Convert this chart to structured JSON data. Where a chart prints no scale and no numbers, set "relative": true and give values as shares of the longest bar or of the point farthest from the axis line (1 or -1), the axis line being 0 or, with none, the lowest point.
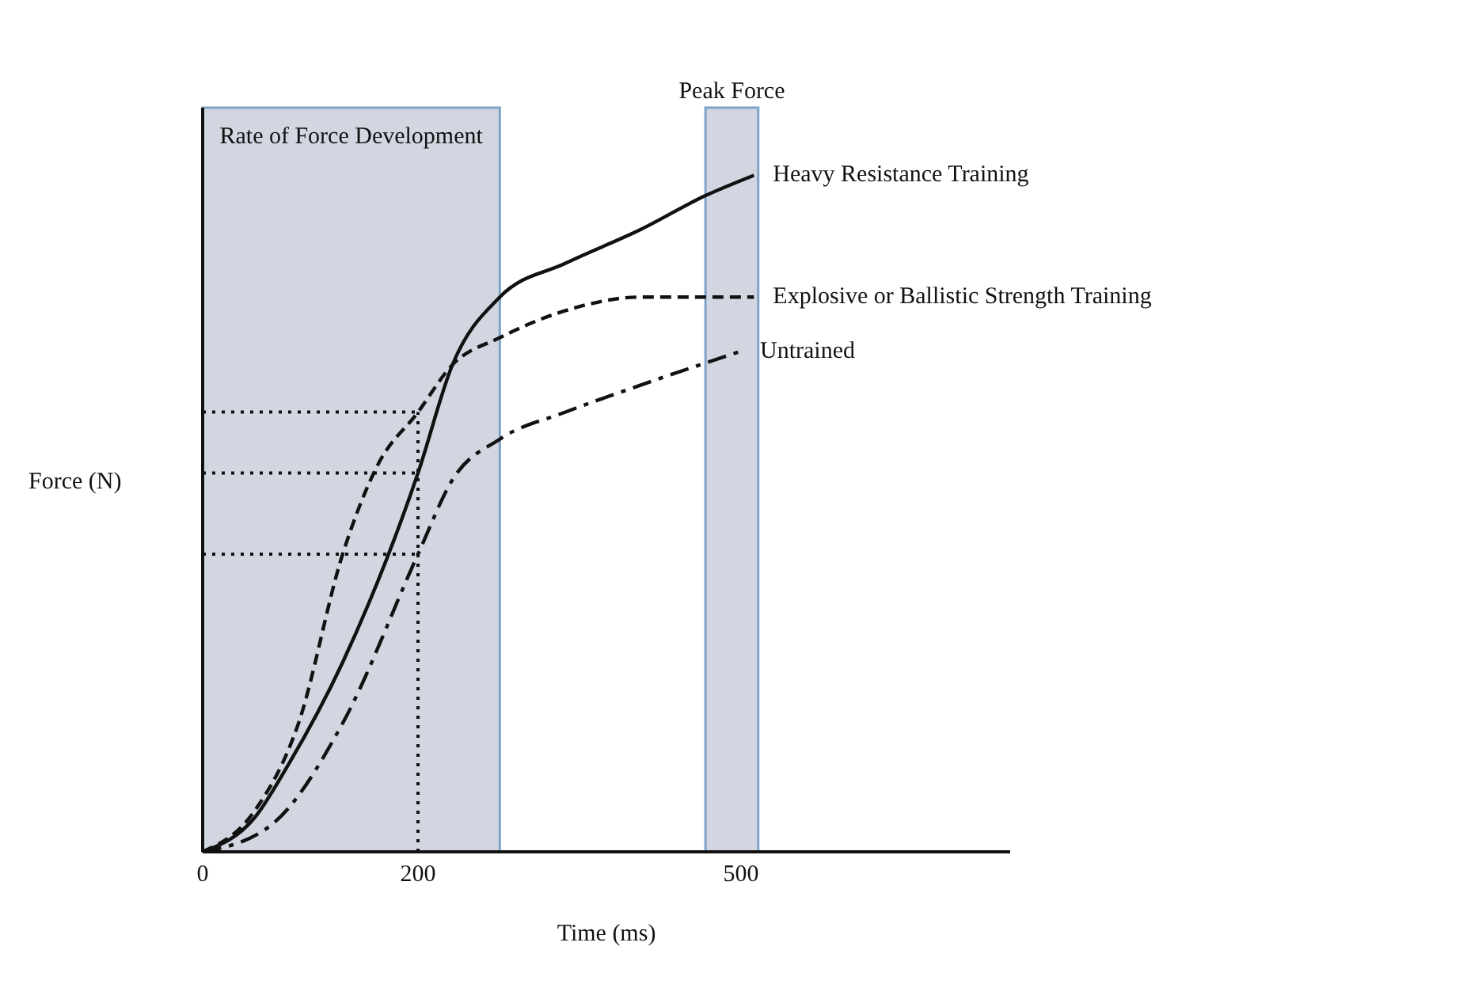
{
  "chart_data": {
    "type": "line",
    "relative": true,
    "xlabel": "Time (ms)",
    "ylabel": "Force (N)",
    "xlim": [
      0,
      750
    ],
    "xticks": [
      0,
      200,
      500
    ],
    "marker": "none",
    "series": [
      {
        "name": "Heavy Resistance Training",
        "color": "#111111",
        "line_style": "solid",
        "x": [
          0,
          48,
          80,
          130,
          200,
          232,
          276,
          337,
          407,
          467,
          512
        ],
        "values": [
          0,
          0.05,
          0.13,
          0.28,
          0.56,
          0.72,
          0.82,
          0.87,
          0.92,
          0.97,
          1.0
        ]
      },
      {
        "name": "Explosive or Ballistic Strength Training",
        "color": "#111111",
        "line_style": "dashed",
        "x": [
          0,
          48,
          89,
          130,
          162,
          200,
          232,
          276,
          337,
          407,
          512
        ],
        "values": [
          0,
          0.06,
          0.19,
          0.44,
          0.57,
          0.65,
          0.72,
          0.76,
          0.8,
          0.82,
          0.82
        ]
      },
      {
        "name": "Untrained",
        "color": "#111111",
        "line_style": "dashdot",
        "x": [
          0,
          64,
          130,
          200,
          232,
          276,
          337,
          407,
          500
        ],
        "values": [
          0,
          0.04,
          0.19,
          0.44,
          0.55,
          0.61,
          0.65,
          0.69,
          0.74
        ]
      }
    ],
    "bands": [
      {
        "axis": "x",
        "from": 0,
        "to": 276,
        "label": "Rate of Force Development",
        "color": "#c9cfdc"
      },
      {
        "axis": "x",
        "from": 467,
        "to": 516,
        "label": "Peak Force",
        "color": "#c9cfdc"
      }
    ],
    "ref_lines": [
      {
        "axis": "x",
        "value": 200,
        "line_style": "dotted"
      },
      {
        "axis": "y",
        "value": 0.65,
        "line_style": "dotted"
      },
      {
        "axis": "y",
        "value": 0.56,
        "line_style": "dotted"
      },
      {
        "axis": "y",
        "value": 0.44,
        "line_style": "dotted"
      }
    ]
  }
}
